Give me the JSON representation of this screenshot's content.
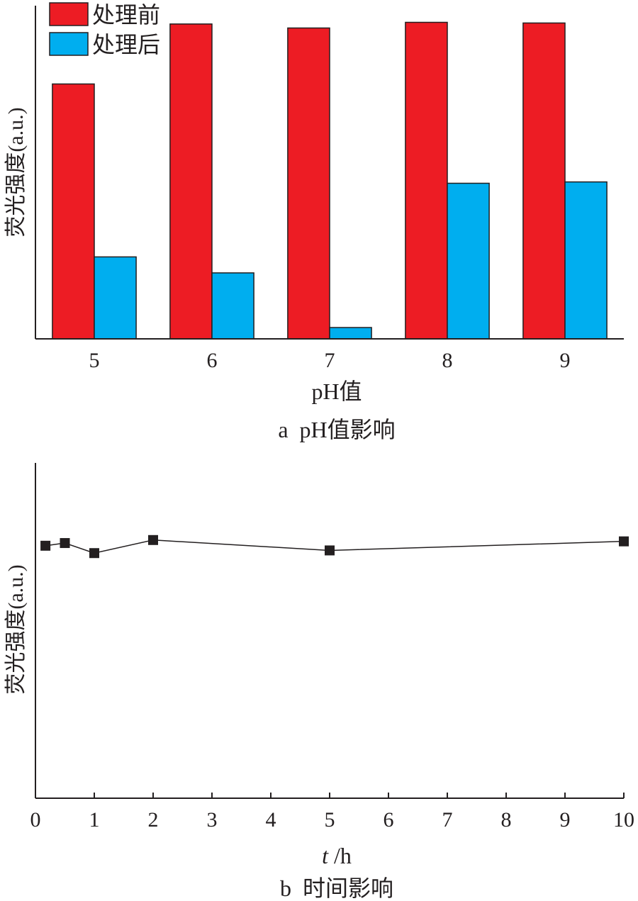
{
  "chart_data": [
    {
      "type": "bar",
      "caption": "a  pH值影响",
      "xlabel": "pH值",
      "ylabel": "荧光强度(a.u.)",
      "categories": [
        "5",
        "6",
        "7",
        "8",
        "9"
      ],
      "ylim": [
        0,
        100
      ],
      "series": [
        {
          "name": "处理前",
          "color": "#ed1c24",
          "values": [
            76.5,
            94.5,
            93.3,
            95.0,
            94.8
          ]
        },
        {
          "name": "处理后",
          "color": "#00aeef",
          "values": [
            24.6,
            19.8,
            3.4,
            46.7,
            47.1
          ]
        }
      ],
      "legend": "top-left",
      "grid": false
    },
    {
      "type": "line",
      "caption": "b  时间影响",
      "xlabel_italic": "t",
      "xlabel_rest": " /h",
      "ylabel": "荧光强度(a.u.)",
      "x": [
        0.17,
        0.5,
        1,
        2,
        5,
        10
      ],
      "y": [
        75.3,
        76.1,
        73.1,
        77.0,
        73.9,
        76.6
      ],
      "xlim": [
        0,
        10
      ],
      "xticks": [
        "0",
        "1",
        "2",
        "3",
        "4",
        "5",
        "6",
        "7",
        "8",
        "9",
        "10"
      ],
      "ylim": [
        0,
        100
      ],
      "marker": "square",
      "grid": false
    }
  ]
}
